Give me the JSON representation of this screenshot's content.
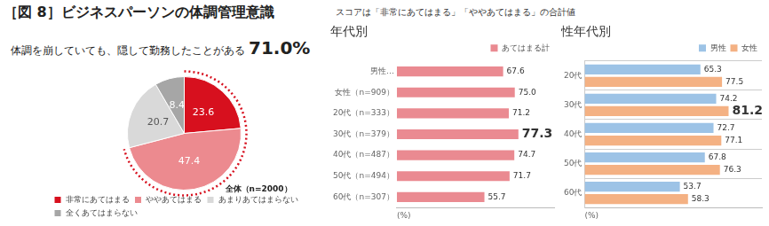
{
  "header": {
    "title": "［図 8］ビジネスパーソンの体調管理意識",
    "note": "スコアは「非常にあてはまる」「ややあてはまる」の合計値"
  },
  "chart_data": [
    {
      "type": "pie",
      "title": "体調を崩していても、隠して勤務したことがある",
      "annotations": [
        "71.0%",
        "全体（n=2000）"
      ],
      "categories": [
        "非常にあてはまる",
        "ややあてはまる",
        "あまりあてはまらない",
        "全くあてはまらない"
      ],
      "values": [
        23.6,
        47.4,
        20.7,
        8.4
      ],
      "colors": [
        "#d7101e",
        "#ec8a8f",
        "#d9d9d9",
        "#a6a6a6"
      ],
      "data_labels": true,
      "legend": "bottom"
    },
    {
      "type": "bar",
      "title": "年代別",
      "orientation": "horizontal",
      "categories": [
        "男性…",
        "女性（n=909）",
        "20代（n=333）",
        "30代（n=379）",
        "40代（n=487）",
        "50代（n=494）",
        "60代（n=307）"
      ],
      "series": [
        {
          "name": "あてはまる計",
          "color": "#ea8a91",
          "values": [
            67.6,
            75.0,
            71.2,
            77.3,
            74.7,
            71.7,
            55.7
          ],
          "value_labels": [
            "67.6",
            "75.0",
            "71.2",
            "77.3",
            "74.7",
            "71.7",
            "55.7"
          ]
        }
      ],
      "x_label": "(%)",
      "xlim": [
        0,
        100
      ],
      "tick_labels": "y",
      "grid": false,
      "data_labels": true,
      "legend": "top-right"
    },
    {
      "type": "bar",
      "title": "性年代別",
      "orientation": "horizontal",
      "categories": [
        "20代",
        "30代",
        "40代",
        "50代",
        "60代"
      ],
      "series": [
        {
          "name": "男性",
          "color": "#9dc3e6",
          "values": [
            65.3,
            74.2,
            72.7,
            67.8,
            53.7
          ]
        },
        {
          "name": "女性",
          "color": "#f4b183",
          "values": [
            77.5,
            81.2,
            77.1,
            76.3,
            58.3
          ]
        }
      ],
      "x_label": "(%)",
      "xlim": [
        0,
        100
      ],
      "tick_labels": "y",
      "grid": true,
      "data_labels": true,
      "legend": "top-right"
    }
  ]
}
